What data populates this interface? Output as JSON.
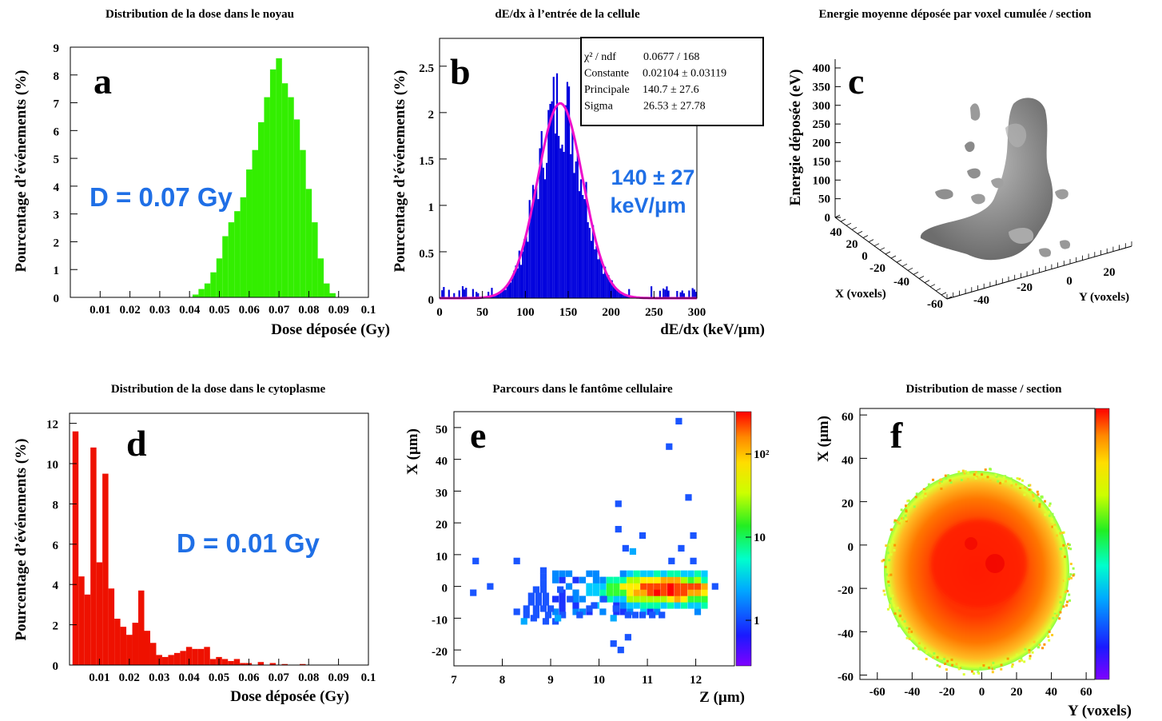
{
  "chart_data": [
    {
      "panel": "a",
      "type": "bar",
      "title": "Distribution de la dose dans le noyau",
      "xlabel": "Dose déposée (Gy)",
      "ylabel": "Pourcentage d’événements (%)",
      "xlim": [
        0,
        0.1
      ],
      "ylim": [
        0,
        9
      ],
      "xticks": [
        "0.01",
        "0.02",
        "0.03",
        "0.04",
        "0.05",
        "0.06",
        "0.07",
        "0.08",
        "0.09",
        "0.1"
      ],
      "yticks": [
        "0",
        "1",
        "2",
        "3",
        "4",
        "5",
        "6",
        "7",
        "8",
        "9"
      ],
      "annotation": "D = 0.07 Gy",
      "color": "#33ee00",
      "x": [
        0.042,
        0.044,
        0.046,
        0.048,
        0.05,
        0.052,
        0.054,
        0.056,
        0.058,
        0.06,
        0.062,
        0.064,
        0.066,
        0.068,
        0.07,
        0.072,
        0.074,
        0.076,
        0.078,
        0.08,
        0.082,
        0.084,
        0.086,
        0.088
      ],
      "values": [
        0.1,
        0.3,
        0.5,
        0.9,
        1.4,
        2.2,
        2.7,
        3.1,
        3.6,
        4.6,
        5.3,
        6.3,
        7.2,
        8.2,
        8.6,
        7.7,
        7.2,
        6.4,
        5.3,
        3.9,
        2.7,
        1.4,
        0.5,
        0.15
      ]
    },
    {
      "panel": "b",
      "type": "bar",
      "title": "dE/dx à l’entrée de la cellule",
      "xlabel": "dE/dx (keV/µm)",
      "ylabel": "Pourcentage d’événements (%)",
      "xlim": [
        0,
        300
      ],
      "ylim": [
        0,
        2.8
      ],
      "xticks": [
        "0",
        "50",
        "100",
        "150",
        "200",
        "250",
        "300"
      ],
      "yticks": [
        "0",
        "0.5",
        "1",
        "1.5",
        "2",
        "2.5"
      ],
      "annotation": [
        "140 ± 27",
        "keV/µm"
      ],
      "color": "#0000dd",
      "fit_color": "#ee11cc",
      "fit": {
        "constant": 2.1,
        "mean": 140.7,
        "sigma": 26.53
      },
      "stats": [
        [
          "χ² / ndf",
          "0.0677 /  168"
        ],
        [
          "Constante",
          "0.02104 ± 0.03119"
        ],
        [
          "Principale",
          "140.7 ± 27.6"
        ],
        [
          "Sigma",
          "26.53 ± 27.78"
        ]
      ]
    },
    {
      "panel": "c",
      "type": "surface3d",
      "title": "Energie moyenne déposée par voxel cumulée / section",
      "zlabel": "Energie déposée (eV)",
      "xlabel": "X (voxels)",
      "ylabel": "Y (voxels)",
      "zticks": [
        "0",
        "50",
        "100",
        "150",
        "200",
        "250",
        "300",
        "350",
        "400"
      ],
      "xticks": [
        "40",
        "20",
        "0",
        "-20",
        "-40",
        "-60"
      ],
      "yticks": [
        "-40",
        "-20",
        "0",
        "20"
      ]
    },
    {
      "panel": "d",
      "type": "bar",
      "title": "Distribution de la dose dans le cytoplasme",
      "xlabel": "Dose déposée (Gy)",
      "ylabel": "Pourcentage d’événements (%)",
      "xlim": [
        0,
        0.1
      ],
      "ylim": [
        0,
        12.5
      ],
      "xticks": [
        "0.01",
        "0.02",
        "0.03",
        "0.04",
        "0.05",
        "0.06",
        "0.07",
        "0.08",
        "0.09",
        "0.1"
      ],
      "yticks": [
        "0",
        "2",
        "4",
        "6",
        "8",
        "10",
        "12"
      ],
      "annotation": "D = 0.01 Gy",
      "color": "#ee1100",
      "x": [
        0.002,
        0.004,
        0.006,
        0.008,
        0.01,
        0.012,
        0.014,
        0.016,
        0.018,
        0.02,
        0.022,
        0.024,
        0.026,
        0.028,
        0.03,
        0.032,
        0.034,
        0.036,
        0.038,
        0.04,
        0.042,
        0.044,
        0.046,
        0.048,
        0.05,
        0.052,
        0.054,
        0.056,
        0.058,
        0.06,
        0.064,
        0.068,
        0.072,
        0.078
      ],
      "values": [
        11.6,
        4.4,
        3.5,
        10.8,
        5.1,
        9.5,
        3.8,
        2.3,
        1.9,
        1.5,
        2.1,
        3.7,
        1.7,
        1.1,
        0.5,
        0.4,
        0.5,
        0.6,
        0.7,
        0.9,
        0.8,
        0.8,
        0.9,
        0.3,
        0.4,
        0.3,
        0.2,
        0.3,
        0.1,
        0.1,
        0.15,
        0.1,
        0.05,
        0.05
      ]
    },
    {
      "panel": "e",
      "type": "heatmap",
      "title": "Parcours dans le fantôme cellulaire",
      "xlabel": "Z (µm)",
      "ylabel": "X (µm)",
      "xlim": [
        7,
        12.8
      ],
      "ylim": [
        -25,
        55
      ],
      "xticks": [
        "7",
        "8",
        "9",
        "10",
        "11",
        "12"
      ],
      "yticks": [
        "-20",
        "-10",
        "0",
        "10",
        "20",
        "30",
        "40",
        "50"
      ],
      "scale": "log",
      "colorbar_ticks": [
        "1",
        "10",
        "10²"
      ]
    },
    {
      "panel": "f",
      "type": "heatmap",
      "title": "Distribution de masse / section",
      "xlabel": "Y (voxels)",
      "ylabel": "X (µm)",
      "xlim": [
        -70,
        65
      ],
      "ylim": [
        -62,
        63
      ],
      "xticks": [
        "-60",
        "-40",
        "-20",
        "0",
        "20",
        "40",
        "60"
      ],
      "yticks": [
        "-60",
        "-40",
        "-20",
        "0",
        "20",
        "40",
        "60"
      ]
    }
  ]
}
